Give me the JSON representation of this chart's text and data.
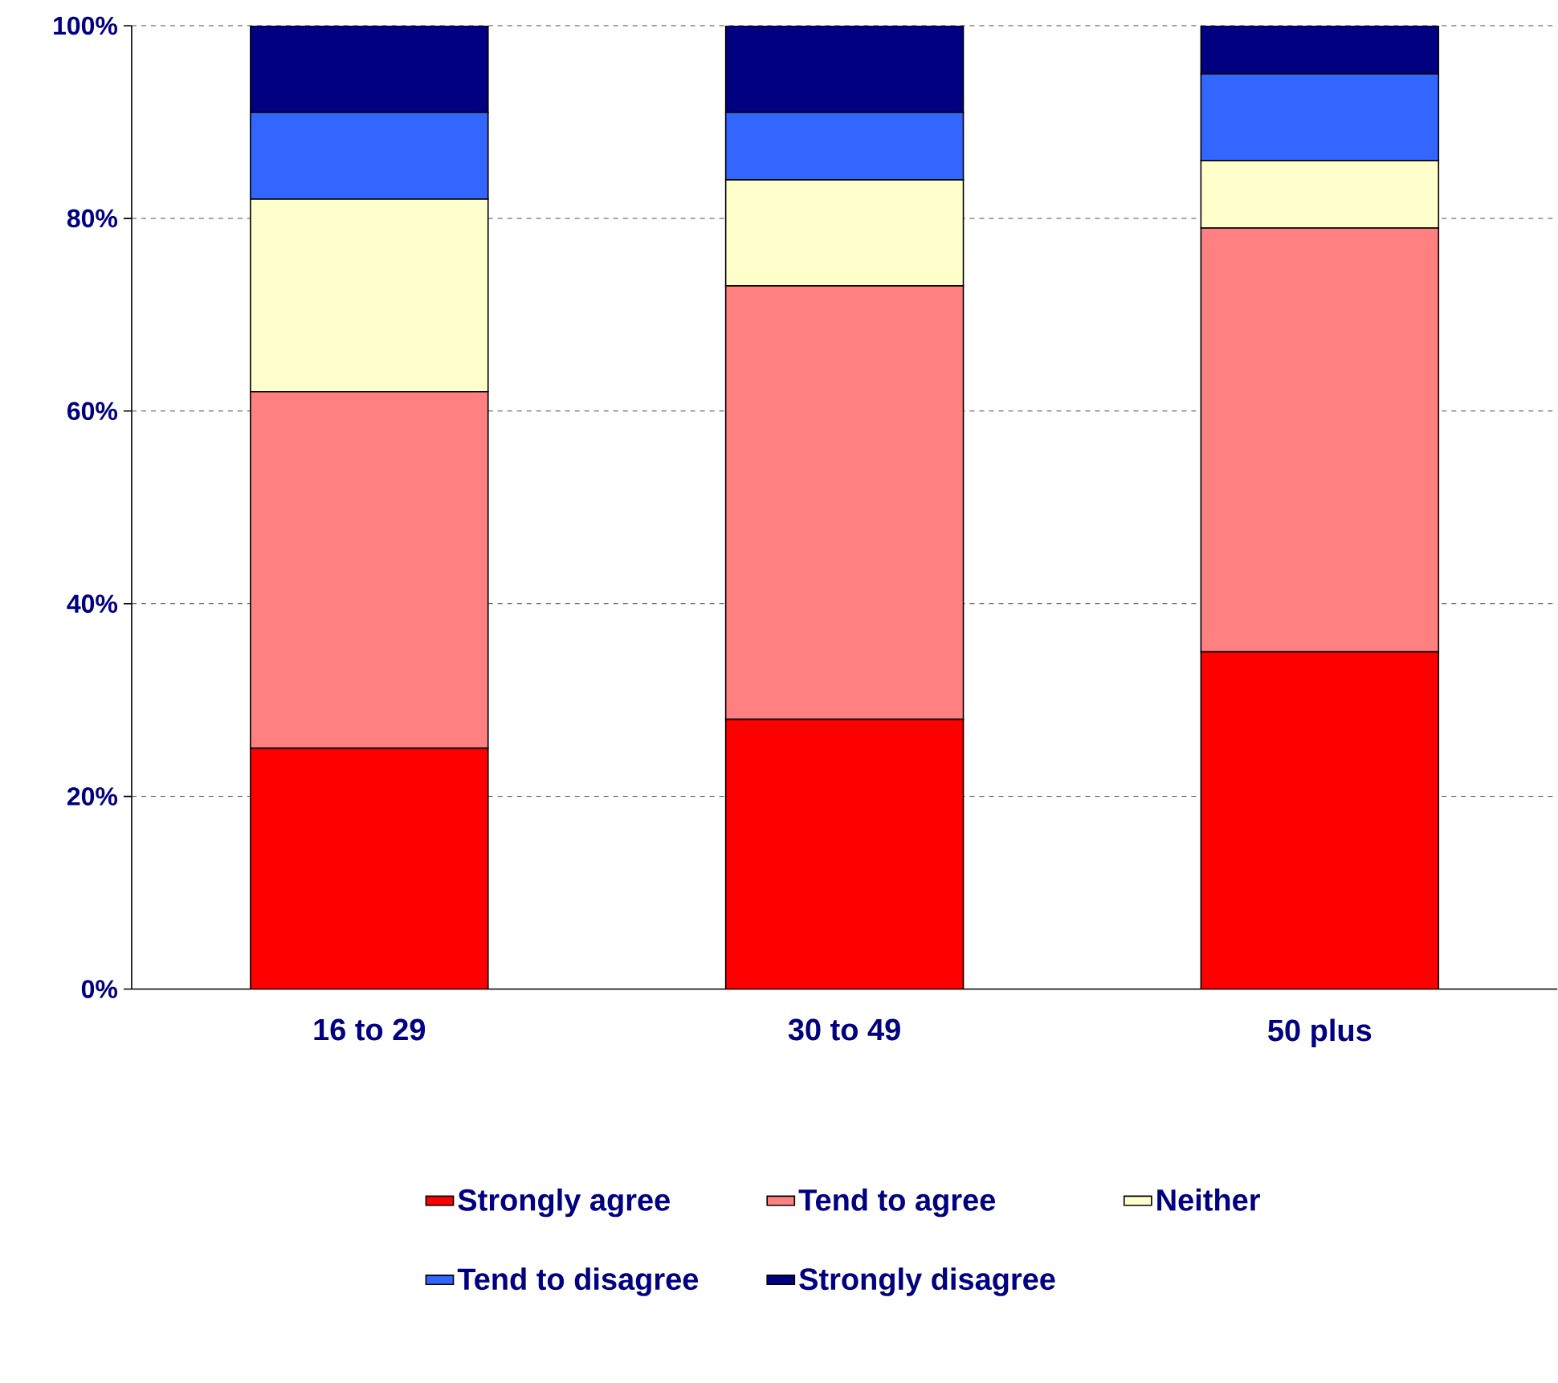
{
  "chart_data": {
    "type": "bar",
    "stacked": true,
    "categories": [
      "16 to 29",
      "30 to 49",
      "50 plus"
    ],
    "series": [
      {
        "name": "Strongly agree",
        "color": "#ff0000",
        "values": [
          25,
          28,
          35
        ]
      },
      {
        "name": "Tend to agree",
        "color": "#ff8080",
        "values": [
          37,
          45,
          44
        ]
      },
      {
        "name": "Neither",
        "color": "#ffffcc",
        "values": [
          20,
          11,
          7
        ]
      },
      {
        "name": "Tend to disagree",
        "color": "#3366ff",
        "values": [
          9,
          7,
          9
        ]
      },
      {
        "name": "Strongly disagree",
        "color": "#000080",
        "values": [
          9,
          9,
          5
        ]
      }
    ],
    "ylim": [
      0,
      100
    ],
    "yticks": [
      {
        "value": 0,
        "label": "0%"
      },
      {
        "value": 20,
        "label": "20%"
      },
      {
        "value": 40,
        "label": "40%"
      },
      {
        "value": 60,
        "label": "60%"
      },
      {
        "value": 80,
        "label": "80%"
      },
      {
        "value": 100,
        "label": "100%"
      }
    ],
    "grid": "y",
    "legend": "bottom"
  }
}
